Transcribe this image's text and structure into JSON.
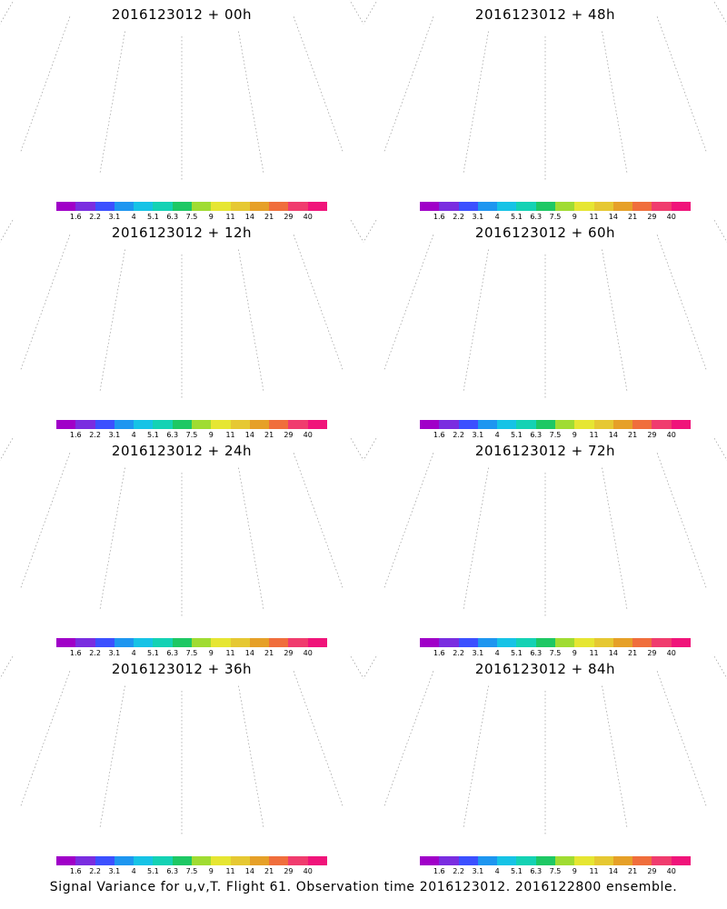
{
  "panels": [
    {
      "title": "2016123012 + 00h",
      "lead": "00h",
      "intensity": 0.08
    },
    {
      "title": "2016123012 + 48h",
      "lead": "48h",
      "intensity": 0.55
    },
    {
      "title": "2016123012 + 12h",
      "lead": "12h",
      "intensity": 0.2
    },
    {
      "title": "2016123012 + 60h",
      "lead": "60h",
      "intensity": 0.7
    },
    {
      "title": "2016123012 + 24h",
      "lead": "24h",
      "intensity": 0.32
    },
    {
      "title": "2016123012 + 72h",
      "lead": "72h",
      "intensity": 0.82
    },
    {
      "title": "2016123012 + 36h",
      "lead": "36h",
      "intensity": 0.45
    },
    {
      "title": "2016123012 + 84h",
      "lead": "84h",
      "intensity": 0.95
    }
  ],
  "colorbar": {
    "labels": [
      "1.6",
      "2.2",
      "3.1",
      "4",
      "5.1",
      "6.3",
      "7.5",
      "9",
      "11",
      "14",
      "21",
      "29",
      "40"
    ],
    "colors": [
      "#a000c8",
      "#7a2de0",
      "#3c50ff",
      "#1e96f0",
      "#16c3e6",
      "#14d2b4",
      "#1ec864",
      "#a0dc32",
      "#e6e632",
      "#e6c832",
      "#e6a028",
      "#f06e3c",
      "#f03c6e",
      "#f0147a"
    ]
  },
  "footer": "Signal Variance for u,v,T. Flight 61. Observation time 2016123012. 2016122800 ensemble."
}
